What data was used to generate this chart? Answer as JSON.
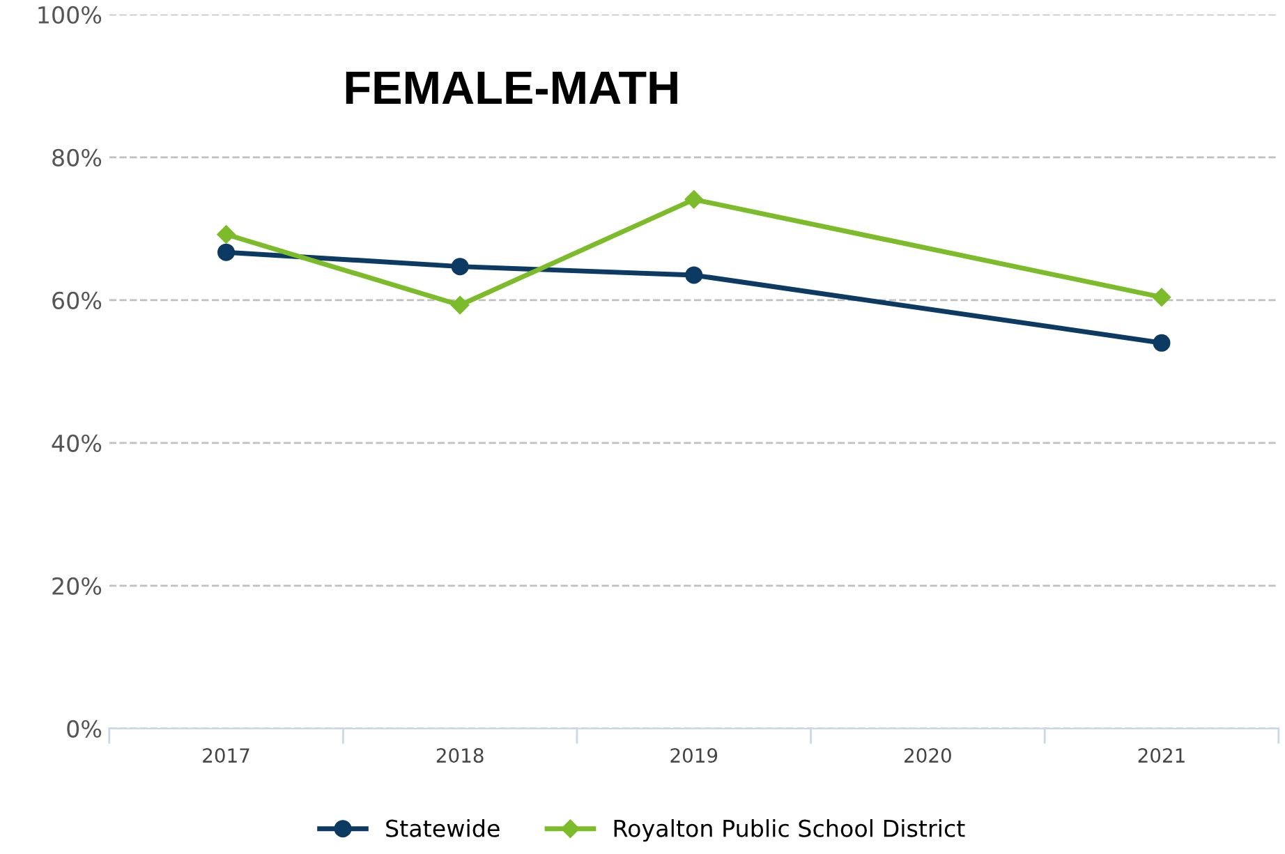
{
  "chart_data": {
    "type": "line",
    "title": "FEMALE-MATH",
    "categories": [
      "2017",
      "2018",
      "2019",
      "2020",
      "2021"
    ],
    "series": [
      {
        "name": "Statewide",
        "color": "#0d3a62",
        "marker": "circle",
        "values": [
          66.7,
          64.7,
          63.5,
          null,
          54.0
        ]
      },
      {
        "name": "Royalton Public School District",
        "color": "#7cbb2a",
        "marker": "diamond",
        "values": [
          69.2,
          59.3,
          74.1,
          null,
          60.4
        ]
      }
    ],
    "ylim": [
      0,
      100
    ],
    "yticks": [
      {
        "value": 0,
        "label": "0%"
      },
      {
        "value": 20,
        "label": "20%"
      },
      {
        "value": 40,
        "label": "40%"
      },
      {
        "value": 60,
        "label": "60%"
      },
      {
        "value": 80,
        "label": "80%"
      },
      {
        "value": 100,
        "label": "100%"
      }
    ],
    "grid": "y",
    "legend": "bottom"
  }
}
